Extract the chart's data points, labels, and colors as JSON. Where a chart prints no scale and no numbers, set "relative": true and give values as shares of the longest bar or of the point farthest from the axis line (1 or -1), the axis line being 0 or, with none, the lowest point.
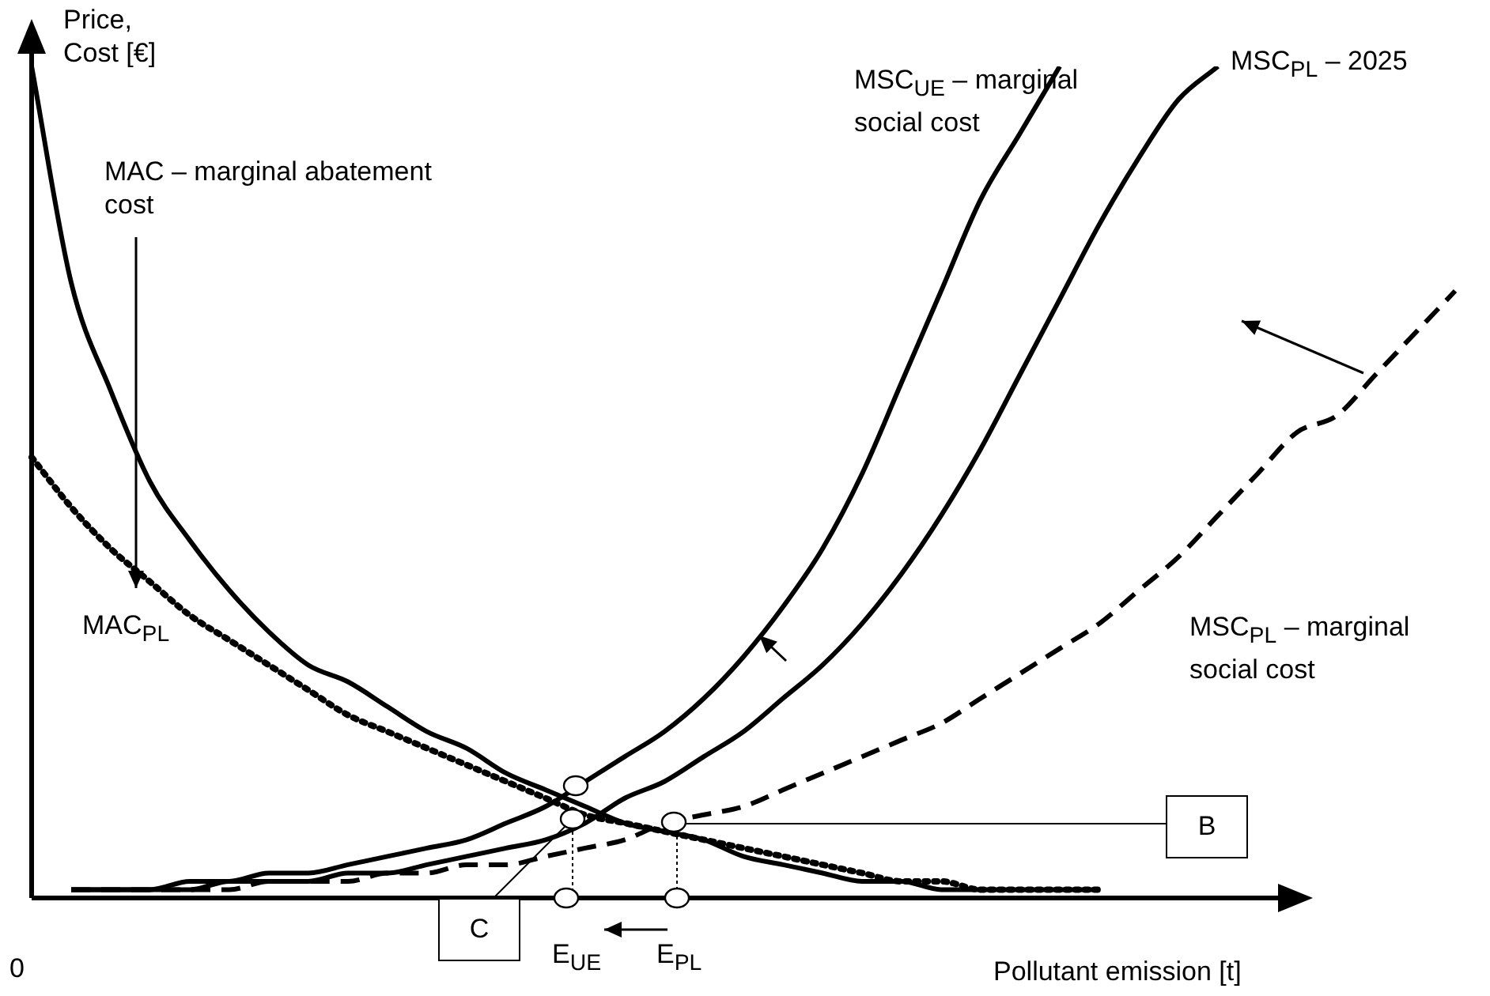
{
  "chart_data": {
    "type": "line",
    "relative": true,
    "xlabel": "Pollutant emission [t]",
    "ylabel": "Price, Cost [€]",
    "marker": "none",
    "categories": [
      null,
      null,
      null,
      null,
      null,
      null,
      null,
      null,
      null,
      null,
      null,
      null,
      null,
      null,
      null,
      null,
      null,
      null,
      null,
      null,
      null,
      null,
      null,
      null,
      null,
      null,
      null,
      null,
      null,
      null,
      null,
      null,
      null,
      null,
      null,
      null,
      null
    ],
    "series": [
      {
        "name": "MAC – marginal abatement cost",
        "color": "#000000",
        "line_style": "solid",
        "values": [
          1.0,
          0.74,
          0.61,
          0.5,
          0.43,
          0.37,
          0.32,
          0.28,
          0.26,
          0.23,
          0.2,
          0.18,
          0.15,
          0.13,
          0.11,
          0.09,
          0.08,
          0.07,
          0.05,
          0.04,
          0.03,
          0.02,
          0.02,
          0.01,
          0.01,
          0.01,
          0.01,
          0.01,
          null,
          null,
          null,
          null,
          null,
          null,
          null,
          null,
          null
        ]
      },
      {
        "name": "MSC$_{UE}$ – marginal social cost",
        "color": "#000000",
        "line_style": "solid",
        "values": [
          null,
          0.01,
          0.01,
          0.01,
          0.02,
          0.02,
          0.03,
          0.03,
          0.04,
          0.05,
          0.06,
          0.07,
          0.09,
          0.11,
          0.14,
          0.17,
          0.2,
          0.24,
          0.29,
          0.35,
          0.42,
          0.51,
          0.62,
          0.73,
          0.84,
          0.92,
          1.0,
          null,
          null,
          null,
          null,
          null,
          null,
          null,
          null,
          null,
          null
        ]
      },
      {
        "name": "MSC$_{PL}$ – 2025",
        "color": "#000000",
        "line_style": "solid",
        "values": [
          null,
          0.01,
          0.01,
          0.01,
          0.01,
          0.02,
          0.02,
          0.02,
          0.03,
          0.03,
          0.04,
          0.05,
          0.06,
          0.07,
          0.09,
          0.12,
          0.14,
          0.17,
          0.2,
          0.24,
          0.28,
          0.33,
          0.39,
          0.46,
          0.54,
          0.63,
          0.72,
          0.81,
          0.89,
          0.96,
          1.0,
          null,
          null,
          null,
          null,
          null,
          null
        ]
      },
      {
        "name": "MSC$_{PL}$ – marginal social cost",
        "color": "#000000",
        "line_style": "dashed",
        "values": [
          null,
          0.01,
          0.01,
          0.01,
          0.01,
          0.01,
          0.02,
          0.02,
          0.02,
          0.03,
          0.03,
          0.04,
          0.04,
          0.05,
          0.06,
          0.07,
          0.09,
          0.1,
          0.11,
          0.13,
          0.15,
          0.17,
          0.19,
          0.21,
          0.24,
          0.27,
          0.3,
          0.33,
          0.37,
          0.41,
          0.46,
          0.51,
          0.56,
          0.58,
          0.63,
          0.68,
          0.73
        ]
      },
      {
        "name": "MAC$_{PL}$",
        "color": "#000000",
        "line_style": "dotted",
        "values": [
          0.53,
          0.47,
          0.42,
          0.38,
          0.34,
          0.31,
          0.28,
          0.25,
          0.22,
          0.2,
          0.18,
          0.16,
          0.14,
          0.12,
          0.1,
          0.09,
          0.08,
          0.07,
          0.06,
          0.05,
          0.04,
          0.03,
          0.02,
          0.02,
          0.01,
          0.01,
          0.01,
          0.01,
          null,
          null,
          null,
          null,
          null,
          null,
          null,
          null,
          null
        ]
      }
    ],
    "annotations": [
      "0",
      "B",
      "C",
      "E$_{UE}$",
      "E$_{PL}$"
    ]
  }
}
